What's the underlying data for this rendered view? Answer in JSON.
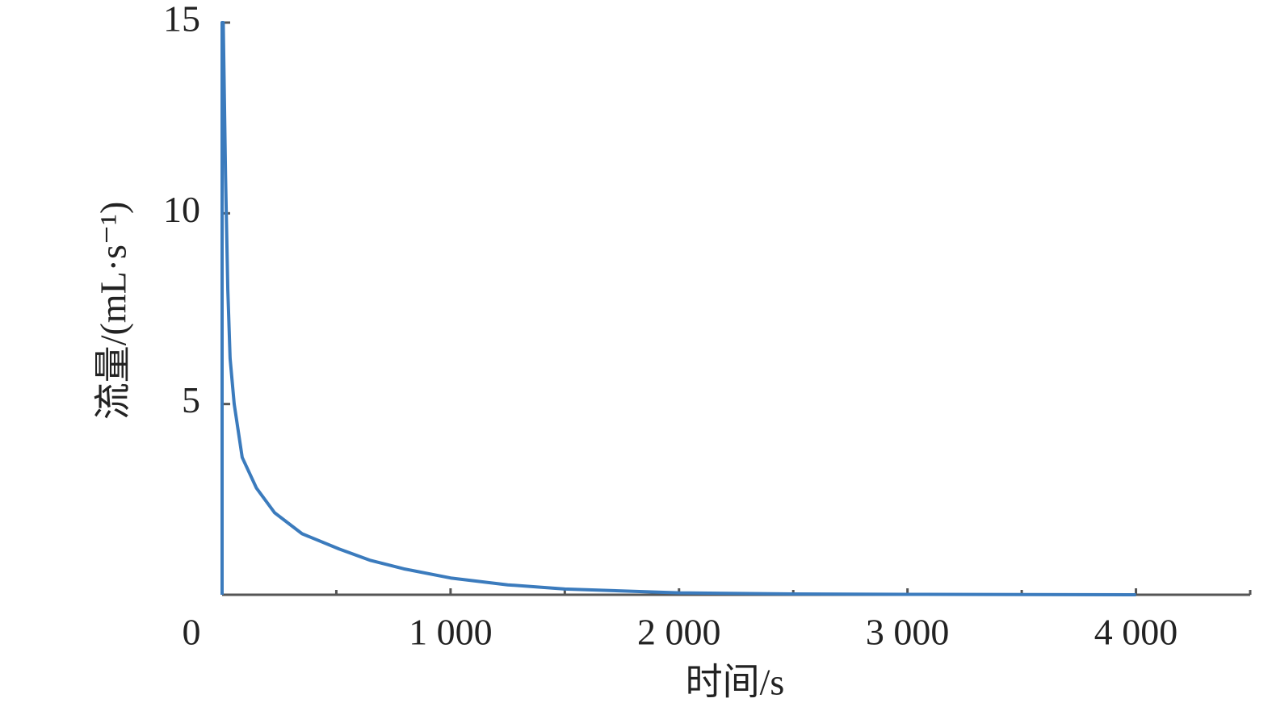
{
  "chart_data": {
    "type": "line",
    "x_label": "时间/s",
    "y_label": "流量/(mL·s⁻¹)",
    "x": [
      0,
      0,
      5,
      15,
      25,
      35,
      53,
      88,
      150,
      230,
      350,
      512,
      650,
      795,
      1000,
      1250,
      1500,
      2000,
      2500,
      3000,
      4000
    ],
    "values": [
      0,
      15,
      15,
      11,
      8,
      6.2,
      5.0,
      3.6,
      2.8,
      2.15,
      1.6,
      1.2,
      0.9,
      0.68,
      0.44,
      0.26,
      0.15,
      0.05,
      0.02,
      0.01,
      0
    ],
    "color": "#3b7bbd",
    "xlim": [
      0,
      4500
    ],
    "ylim": [
      0,
      15
    ],
    "xticks": [
      0,
      {
        "value": 1000,
        "label": "1 000"
      },
      {
        "value": 2000,
        "label": "2 000"
      },
      {
        "value": 3000,
        "label": "3 000"
      },
      {
        "value": 4000,
        "label": "4 000"
      }
    ],
    "xminorticks": [
      500,
      1500,
      2500,
      3500,
      4500
    ],
    "yticks": [
      5,
      10,
      15
    ],
    "grid": false
  }
}
